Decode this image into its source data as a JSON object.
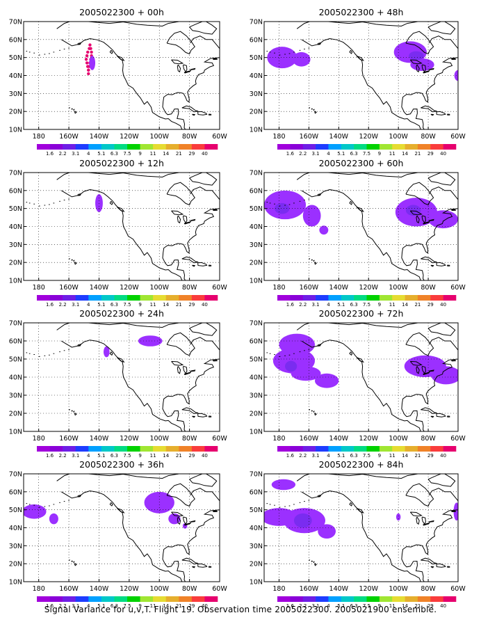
{
  "figure": {
    "caption": "Signal Variance for u,v,T. Flight 19. Observation time 2005022300. 2005021900 ensemble."
  },
  "colors": {
    "scale": [
      "#a100dc",
      "#8a00d8",
      "#6e1ee6",
      "#1e3cff",
      "#00a0ff",
      "#00c8c8",
      "#00dc82",
      "#00d200",
      "#a0e632",
      "#e6dc32",
      "#e6af2d",
      "#f08228",
      "#fa3c3c",
      "#e6006e"
    ],
    "coast": "#000000",
    "grid": "#000000",
    "plume": "#9b30ff",
    "core": "#7a2cf0",
    "deep": "#6e1ee6",
    "dots": "#e6006e"
  },
  "axes": {
    "lon_ticks": [
      "180",
      "160W",
      "140W",
      "120W",
      "100W",
      "80W",
      "60W"
    ],
    "lat_ticks": [
      "10N",
      "20N",
      "30N",
      "40N",
      "50N",
      "60N",
      "70N"
    ],
    "lon_range": [
      -190,
      -60
    ],
    "lat_range": [
      10,
      70
    ]
  },
  "colorbar_labels": [
    "1.6",
    "2.2",
    "3.1",
    "4",
    "5.1",
    "6.3",
    "7.5",
    "9",
    "11",
    "14",
    "21",
    "29",
    "40"
  ],
  "chart_data": [
    {
      "type": "heatmap",
      "title": "2005022300 + 00h",
      "lead_hours": 0,
      "features": [
        {
          "kind": "dots",
          "lon": [
            -147,
            -147,
            -147.5,
            -148,
            -148.5,
            -148,
            -147.5,
            -146.5,
            -146,
            -145.5,
            -145,
            -145,
            -145.5,
            -146,
            -146.5,
            -147
          ],
          "lat": [
            41,
            43,
            45,
            47,
            49,
            51,
            53,
            55,
            57,
            55,
            53,
            51,
            49,
            47,
            45,
            43
          ],
          "level": "40"
        },
        {
          "kind": "blob",
          "lon": -144.5,
          "lat": 47,
          "rx": 2,
          "ry": 4,
          "level": "1.6"
        }
      ]
    },
    {
      "type": "heatmap",
      "title": "2005022300 + 48h",
      "lead_hours": 48,
      "features": [
        {
          "kind": "blob",
          "lon": -178,
          "lat": 50,
          "rx": 10,
          "ry": 6,
          "level": "1.6"
        },
        {
          "kind": "blob",
          "lon": -165,
          "lat": 49,
          "rx": 6,
          "ry": 4,
          "level": "1.6"
        },
        {
          "kind": "blob",
          "lon": -92,
          "lat": 53,
          "rx": 11,
          "ry": 6,
          "level": "1.6"
        },
        {
          "kind": "blob",
          "lon": -84,
          "lat": 46,
          "rx": 8,
          "ry": 3.5,
          "level": "1.6"
        },
        {
          "kind": "blob",
          "lon": -60,
          "lat": 40,
          "rx": 2.5,
          "ry": 3,
          "level": "1.6"
        },
        {
          "kind": "blob",
          "lon": -88,
          "lat": 51,
          "rx": 5,
          "ry": 2.5,
          "level": "2.2"
        }
      ]
    },
    {
      "type": "heatmap",
      "title": "2005022300 + 12h",
      "lead_hours": 12,
      "features": [
        {
          "kind": "blob",
          "lon": -140,
          "lat": 53,
          "rx": 2.5,
          "ry": 5,
          "level": "1.6"
        }
      ]
    },
    {
      "type": "heatmap",
      "title": "2005022300 + 60h",
      "lead_hours": 60,
      "features": [
        {
          "kind": "blob",
          "lon": -176,
          "lat": 52,
          "rx": 14,
          "ry": 8,
          "level": "1.6"
        },
        {
          "kind": "blob",
          "lon": -158,
          "lat": 46,
          "rx": 6,
          "ry": 6,
          "level": "1.6"
        },
        {
          "kind": "blob",
          "lon": -150,
          "lat": 38,
          "rx": 3,
          "ry": 2.5,
          "level": "1.6"
        },
        {
          "kind": "blob",
          "lon": -88,
          "lat": 48,
          "rx": 14,
          "ry": 8,
          "level": "1.6"
        },
        {
          "kind": "blob",
          "lon": -70,
          "lat": 44,
          "rx": 10,
          "ry": 5,
          "level": "1.6"
        },
        {
          "kind": "blob",
          "lon": -178,
          "lat": 50,
          "rx": 5,
          "ry": 3,
          "level": "2.2"
        },
        {
          "kind": "blob",
          "lon": -90,
          "lat": 49,
          "rx": 5,
          "ry": 3,
          "level": "2.2"
        }
      ]
    },
    {
      "type": "heatmap",
      "title": "2005022300 + 24h",
      "lead_hours": 24,
      "features": [
        {
          "kind": "blob",
          "lon": -135,
          "lat": 54,
          "rx": 2,
          "ry": 3,
          "level": "1.6"
        },
        {
          "kind": "blob",
          "lon": -106,
          "lat": 60,
          "rx": 8,
          "ry": 3,
          "level": "1.6"
        }
      ]
    },
    {
      "type": "heatmap",
      "title": "2005022300 + 72h",
      "lead_hours": 72,
      "features": [
        {
          "kind": "blob",
          "lon": -168,
          "lat": 58,
          "rx": 12,
          "ry": 6,
          "level": "1.6"
        },
        {
          "kind": "blob",
          "lon": -170,
          "lat": 49,
          "rx": 14,
          "ry": 7,
          "level": "1.6"
        },
        {
          "kind": "blob",
          "lon": -162,
          "lat": 42,
          "rx": 10,
          "ry": 4,
          "level": "1.6"
        },
        {
          "kind": "blob",
          "lon": -148,
          "lat": 38,
          "rx": 8,
          "ry": 4,
          "level": "1.6"
        },
        {
          "kind": "blob",
          "lon": -82,
          "lat": 46,
          "rx": 14,
          "ry": 6,
          "level": "1.6"
        },
        {
          "kind": "blob",
          "lon": -68,
          "lat": 41,
          "rx": 10,
          "ry": 5,
          "level": "1.6"
        },
        {
          "kind": "blob",
          "lon": -172,
          "lat": 46,
          "rx": 4,
          "ry": 3,
          "level": "2.2"
        }
      ]
    },
    {
      "type": "heatmap",
      "title": "2005022300 + 36h",
      "lead_hours": 36,
      "features": [
        {
          "kind": "blob",
          "lon": -183,
          "lat": 49,
          "rx": 8,
          "ry": 4,
          "level": "1.6"
        },
        {
          "kind": "blob",
          "lon": -170,
          "lat": 45,
          "rx": 3,
          "ry": 3,
          "level": "1.6"
        },
        {
          "kind": "blob",
          "lon": -100,
          "lat": 54,
          "rx": 10,
          "ry": 6,
          "level": "1.6"
        },
        {
          "kind": "blob",
          "lon": -90,
          "lat": 45,
          "rx": 4,
          "ry": 3,
          "level": "1.6"
        },
        {
          "kind": "blob",
          "lon": -83,
          "lat": 41,
          "rx": 1.5,
          "ry": 1.5,
          "level": "1.6"
        }
      ]
    },
    {
      "type": "heatmap",
      "title": "2005022300 + 84h",
      "lead_hours": 84,
      "features": [
        {
          "kind": "blob",
          "lon": -177,
          "lat": 64,
          "rx": 8,
          "ry": 3,
          "level": "1.6"
        },
        {
          "kind": "blob",
          "lon": -180,
          "lat": 46,
          "rx": 12,
          "ry": 5,
          "level": "1.6"
        },
        {
          "kind": "blob",
          "lon": -163,
          "lat": 44,
          "rx": 14,
          "ry": 7,
          "level": "1.6"
        },
        {
          "kind": "blob",
          "lon": -148,
          "lat": 38,
          "rx": 6,
          "ry": 4,
          "level": "1.6"
        },
        {
          "kind": "blob",
          "lon": -100,
          "lat": 46,
          "rx": 1.5,
          "ry": 2,
          "level": "1.6"
        },
        {
          "kind": "blob",
          "lon": -61,
          "lat": 49,
          "rx": 2,
          "ry": 5,
          "level": "1.6"
        },
        {
          "kind": "blob",
          "lon": -164,
          "lat": 44,
          "rx": 6,
          "ry": 4,
          "level": "2.2"
        }
      ]
    }
  ]
}
